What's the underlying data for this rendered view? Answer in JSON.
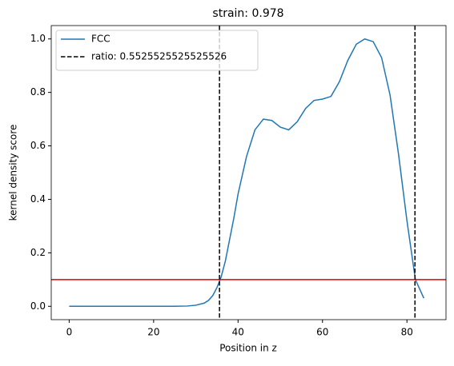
{
  "chart_data": {
    "type": "line",
    "title": "strain: 0.978",
    "x_label": "Position in z",
    "y_label": "kernel density score",
    "x": [
      0,
      5,
      10,
      15,
      20,
      25,
      28,
      30,
      32,
      33,
      34,
      35,
      36,
      37,
      38,
      39,
      40,
      42,
      44,
      46,
      48,
      50,
      52,
      54,
      56,
      58,
      60,
      62,
      64,
      66,
      68,
      70,
      72,
      74,
      76,
      78,
      80,
      82,
      84
    ],
    "series": [
      {
        "name": "FCC",
        "color": "#1f77b4",
        "values": [
          0,
          0,
          0,
          0,
          0,
          0,
          0.001,
          0.004,
          0.012,
          0.022,
          0.04,
          0.07,
          0.11,
          0.17,
          0.25,
          0.33,
          0.42,
          0.56,
          0.66,
          0.7,
          0.695,
          0.67,
          0.66,
          0.69,
          0.74,
          0.77,
          0.775,
          0.785,
          0.84,
          0.92,
          0.98,
          1.0,
          0.99,
          0.93,
          0.79,
          0.57,
          0.32,
          0.1,
          0.03
        ]
      }
    ],
    "vlines": {
      "name": "ratio: 0.5525525525525526",
      "color": "#000000",
      "x": [
        35.6,
        81.9
      ]
    },
    "hline": {
      "y": 0.1,
      "color": "#e00000"
    },
    "xlim": [
      -4.25,
      89.25
    ],
    "ylim": [
      -0.05,
      1.05
    ],
    "xticks": [
      0,
      20,
      40,
      60,
      80
    ],
    "yticks": [
      {
        "value": 0,
        "label": "0.0"
      },
      0.2,
      0.4,
      0.6,
      0.8,
      {
        "value": 1,
        "label": "1.0"
      }
    ],
    "legend": "upper left"
  }
}
